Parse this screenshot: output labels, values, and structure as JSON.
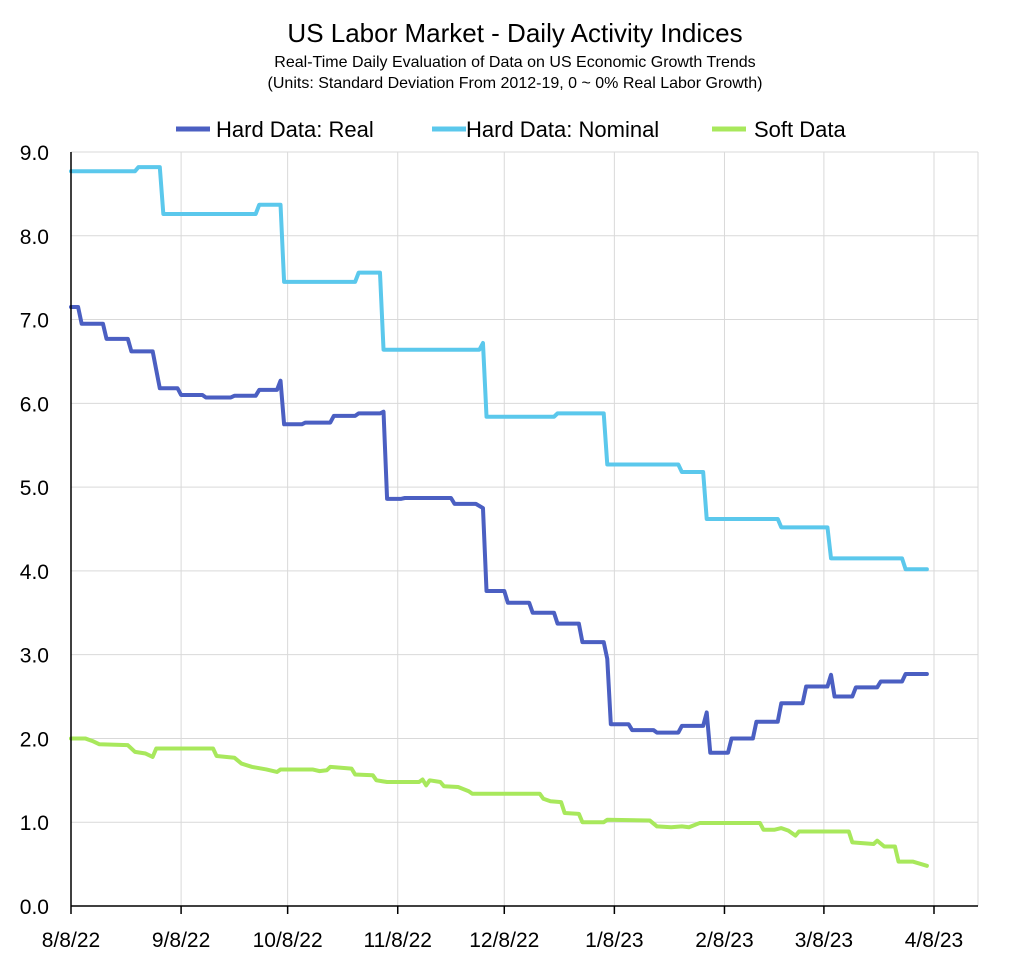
{
  "chart_data": {
    "type": "line",
    "title": "US Labor Market - Daily Activity Indices",
    "subtitle_lines": [
      "Real-Time Daily Evaluation of Data on US Economic Growth Trends",
      "(Units: Standard Deviation From 2012-19, 0 ~ 0% Real Labor Growth)"
    ],
    "xlabel": "",
    "ylabel": "",
    "x_ticks": [
      "8/8/22",
      "9/8/22",
      "10/8/22",
      "11/8/22",
      "12/8/22",
      "1/8/23",
      "2/8/23",
      "3/8/23",
      "4/8/23"
    ],
    "xlim": [
      "2022-08-08",
      "2023-04-08"
    ],
    "ylim": [
      0,
      9
    ],
    "y_ticks": [
      "0.0",
      "1.0",
      "2.0",
      "3.0",
      "4.0",
      "5.0",
      "6.0",
      "7.0",
      "8.0",
      "9.0"
    ],
    "grid": true,
    "legend_position": "top",
    "series": [
      {
        "name": "Hard Data: Real",
        "color": "#4b5fc2",
        "points": [
          [
            "2022-08-08",
            7.15
          ],
          [
            "2022-08-10",
            7.15
          ],
          [
            "2022-08-11",
            6.95
          ],
          [
            "2022-08-17",
            6.95
          ],
          [
            "2022-08-18",
            6.77
          ],
          [
            "2022-08-24",
            6.77
          ],
          [
            "2022-08-25",
            6.62
          ],
          [
            "2022-08-31",
            6.62
          ],
          [
            "2022-09-01",
            6.4
          ],
          [
            "2022-09-02",
            6.18
          ],
          [
            "2022-09-07",
            6.18
          ],
          [
            "2022-09-08",
            6.1
          ],
          [
            "2022-09-14",
            6.1
          ],
          [
            "2022-09-15",
            6.07
          ],
          [
            "2022-09-22",
            6.07
          ],
          [
            "2022-09-23",
            6.09
          ],
          [
            "2022-09-29",
            6.09
          ],
          [
            "2022-09-30",
            6.16
          ],
          [
            "2022-10-05",
            6.16
          ],
          [
            "2022-10-06",
            6.27
          ],
          [
            "2022-10-07",
            5.75
          ],
          [
            "2022-10-12",
            5.75
          ],
          [
            "2022-10-13",
            5.77
          ],
          [
            "2022-10-20",
            5.77
          ],
          [
            "2022-10-21",
            5.85
          ],
          [
            "2022-10-27",
            5.85
          ],
          [
            "2022-10-28",
            5.88
          ],
          [
            "2022-11-03",
            5.88
          ],
          [
            "2022-11-04",
            5.9
          ],
          [
            "2022-11-05",
            4.86
          ],
          [
            "2022-11-09",
            4.86
          ],
          [
            "2022-11-10",
            4.87
          ],
          [
            "2022-11-23",
            4.87
          ],
          [
            "2022-11-24",
            4.8
          ],
          [
            "2022-11-30",
            4.8
          ],
          [
            "2022-12-02",
            4.75
          ],
          [
            "2022-12-03",
            3.76
          ],
          [
            "2022-12-08",
            3.76
          ],
          [
            "2022-12-09",
            3.62
          ],
          [
            "2022-12-15",
            3.62
          ],
          [
            "2022-12-16",
            3.5
          ],
          [
            "2022-12-22",
            3.5
          ],
          [
            "2022-12-23",
            3.37
          ],
          [
            "2022-12-29",
            3.37
          ],
          [
            "2022-12-30",
            3.15
          ],
          [
            "2023-01-05",
            3.15
          ],
          [
            "2023-01-06",
            2.95
          ],
          [
            "2023-01-07",
            2.17
          ],
          [
            "2023-01-12",
            2.17
          ],
          [
            "2023-01-13",
            2.1
          ],
          [
            "2023-01-19",
            2.1
          ],
          [
            "2023-01-20",
            2.07
          ],
          [
            "2023-01-26",
            2.07
          ],
          [
            "2023-01-27",
            2.15
          ],
          [
            "2023-02-02",
            2.15
          ],
          [
            "2023-02-03",
            2.31
          ],
          [
            "2023-02-04",
            1.83
          ],
          [
            "2023-02-09",
            1.83
          ],
          [
            "2023-02-10",
            2.0
          ],
          [
            "2023-02-16",
            2.0
          ],
          [
            "2023-02-17",
            2.2
          ],
          [
            "2023-02-23",
            2.2
          ],
          [
            "2023-02-24",
            2.42
          ],
          [
            "2023-03-02",
            2.42
          ],
          [
            "2023-03-03",
            2.62
          ],
          [
            "2023-03-09",
            2.62
          ],
          [
            "2023-03-10",
            2.76
          ],
          [
            "2023-03-11",
            2.5
          ],
          [
            "2023-03-16",
            2.5
          ],
          [
            "2023-03-17",
            2.61
          ],
          [
            "2023-03-23",
            2.61
          ],
          [
            "2023-03-24",
            2.68
          ],
          [
            "2023-03-30",
            2.68
          ],
          [
            "2023-03-31",
            2.77
          ],
          [
            "2023-04-06",
            2.77
          ]
        ]
      },
      {
        "name": "Hard Data: Nominal",
        "color": "#5bc8ec",
        "points": [
          [
            "2022-08-08",
            8.77
          ],
          [
            "2022-08-26",
            8.77
          ],
          [
            "2022-08-27",
            8.82
          ],
          [
            "2022-09-02",
            8.82
          ],
          [
            "2022-09-03",
            8.26
          ],
          [
            "2022-09-29",
            8.26
          ],
          [
            "2022-09-30",
            8.37
          ],
          [
            "2022-10-06",
            8.37
          ],
          [
            "2022-10-07",
            7.45
          ],
          [
            "2022-10-27",
            7.45
          ],
          [
            "2022-10-28",
            7.56
          ],
          [
            "2022-11-03",
            7.56
          ],
          [
            "2022-11-04",
            6.64
          ],
          [
            "2022-12-01",
            6.64
          ],
          [
            "2022-12-02",
            6.72
          ],
          [
            "2022-12-03",
            5.84
          ],
          [
            "2022-12-22",
            5.84
          ],
          [
            "2022-12-23",
            5.88
          ],
          [
            "2023-01-05",
            5.88
          ],
          [
            "2023-01-06",
            5.27
          ],
          [
            "2023-01-26",
            5.27
          ],
          [
            "2023-01-27",
            5.18
          ],
          [
            "2023-02-02",
            5.18
          ],
          [
            "2023-02-03",
            4.62
          ],
          [
            "2023-02-23",
            4.62
          ],
          [
            "2023-02-24",
            4.52
          ],
          [
            "2023-03-09",
            4.52
          ],
          [
            "2023-03-10",
            4.15
          ],
          [
            "2023-03-30",
            4.15
          ],
          [
            "2023-03-31",
            4.02
          ],
          [
            "2023-04-06",
            4.02
          ]
        ]
      },
      {
        "name": "Soft Data",
        "color": "#a8e85c",
        "points": [
          [
            "2022-08-08",
            2.0
          ],
          [
            "2022-08-12",
            2.0
          ],
          [
            "2022-08-14",
            1.97
          ],
          [
            "2022-08-16",
            1.93
          ],
          [
            "2022-08-24",
            1.92
          ],
          [
            "2022-08-26",
            1.84
          ],
          [
            "2022-08-29",
            1.82
          ],
          [
            "2022-08-31",
            1.78
          ],
          [
            "2022-09-01",
            1.88
          ],
          [
            "2022-09-17",
            1.88
          ],
          [
            "2022-09-18",
            1.79
          ],
          [
            "2022-09-23",
            1.77
          ],
          [
            "2022-09-25",
            1.7
          ],
          [
            "2022-09-28",
            1.66
          ],
          [
            "2022-10-02",
            1.63
          ],
          [
            "2022-10-05",
            1.6
          ],
          [
            "2022-10-06",
            1.63
          ],
          [
            "2022-10-15",
            1.63
          ],
          [
            "2022-10-17",
            1.61
          ],
          [
            "2022-10-19",
            1.62
          ],
          [
            "2022-10-20",
            1.66
          ],
          [
            "2022-10-26",
            1.64
          ],
          [
            "2022-10-27",
            1.57
          ],
          [
            "2022-11-01",
            1.56
          ],
          [
            "2022-11-02",
            1.5
          ],
          [
            "2022-11-05",
            1.48
          ],
          [
            "2022-11-14",
            1.48
          ],
          [
            "2022-11-15",
            1.51
          ],
          [
            "2022-11-16",
            1.44
          ],
          [
            "2022-11-17",
            1.5
          ],
          [
            "2022-11-20",
            1.48
          ],
          [
            "2022-11-21",
            1.43
          ],
          [
            "2022-11-25",
            1.42
          ],
          [
            "2022-11-28",
            1.37
          ],
          [
            "2022-11-29",
            1.34
          ],
          [
            "2022-12-18",
            1.34
          ],
          [
            "2022-12-19",
            1.28
          ],
          [
            "2022-12-21",
            1.25
          ],
          [
            "2022-12-24",
            1.24
          ],
          [
            "2022-12-25",
            1.11
          ],
          [
            "2022-12-29",
            1.1
          ],
          [
            "2022-12-30",
            1.0
          ],
          [
            "2023-01-05",
            1.0
          ],
          [
            "2023-01-06",
            1.03
          ],
          [
            "2023-01-18",
            1.02
          ],
          [
            "2023-01-20",
            0.95
          ],
          [
            "2023-01-24",
            0.94
          ],
          [
            "2023-01-27",
            0.95
          ],
          [
            "2023-01-29",
            0.94
          ],
          [
            "2023-02-01",
            0.99
          ],
          [
            "2023-02-18",
            0.99
          ],
          [
            "2023-02-19",
            0.91
          ],
          [
            "2023-02-22",
            0.91
          ],
          [
            "2023-02-24",
            0.93
          ],
          [
            "2023-02-26",
            0.9
          ],
          [
            "2023-02-28",
            0.84
          ],
          [
            "2023-03-01",
            0.89
          ],
          [
            "2023-03-15",
            0.89
          ],
          [
            "2023-03-16",
            0.76
          ],
          [
            "2023-03-22",
            0.74
          ],
          [
            "2023-03-23",
            0.78
          ],
          [
            "2023-03-25",
            0.71
          ],
          [
            "2023-03-28",
            0.71
          ],
          [
            "2023-03-29",
            0.53
          ],
          [
            "2023-04-02",
            0.53
          ],
          [
            "2023-04-06",
            0.48
          ]
        ]
      }
    ]
  }
}
